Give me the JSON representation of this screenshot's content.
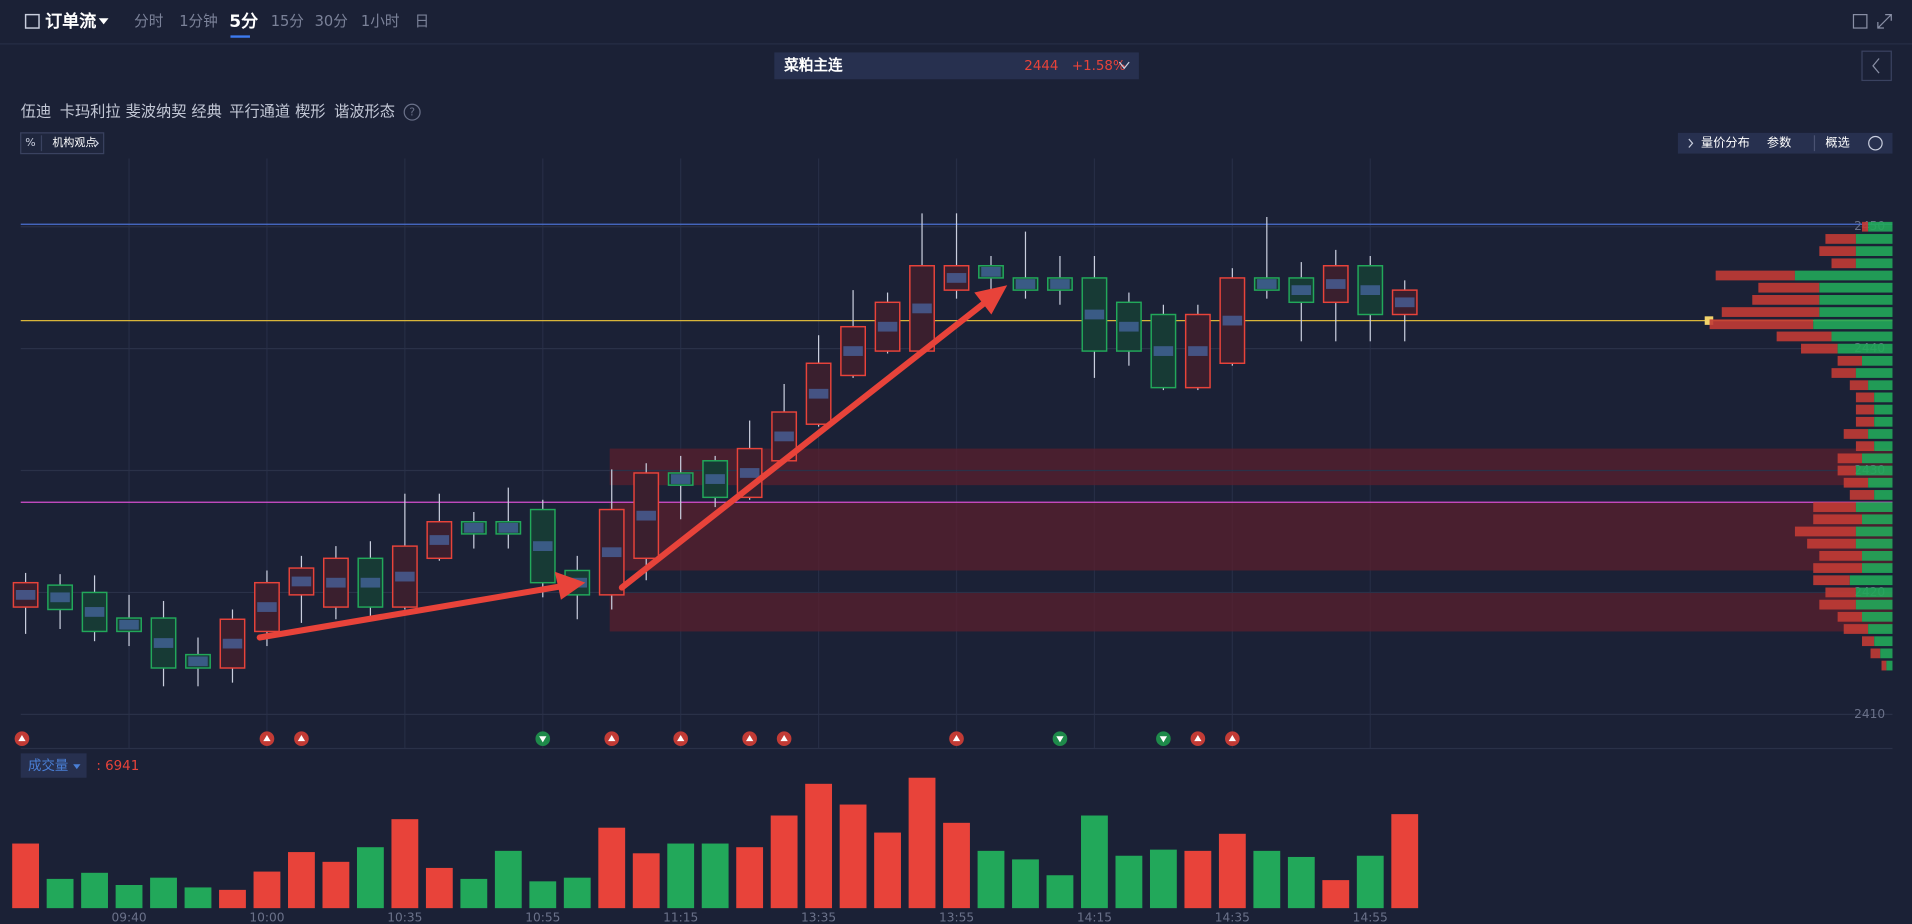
{
  "header": {
    "title": "订单流",
    "timeframes": [
      "分时",
      "1分钟",
      "5分",
      "15分",
      "30分",
      "1小时",
      "日"
    ],
    "active_timeframe": 2
  },
  "instrument": {
    "name": "菜粕主连",
    "price": 2444,
    "change": "+1.58%"
  },
  "tools": [
    "伍迪",
    "卡玛利拉",
    "斐波纳契",
    "经典",
    "平行通道",
    "楔形",
    "谐波形态"
  ],
  "badge": {
    "icon": "%",
    "label": "机构观点"
  },
  "panel_buttons": [
    "量价分布",
    "参数",
    "概选"
  ],
  "chart_data": [
    {
      "type": "candlestick",
      "up_color": "#e8433a",
      "down_color": "#22a85a",
      "open": [
        2418.8,
        2420.6,
        2420,
        2417.9,
        2417.9,
        2414.9,
        2413.8,
        2416.8,
        2419.8,
        2418.8,
        2422.8,
        2418.8,
        2422.8,
        2425.8,
        2425.8,
        2426.8,
        2421.8,
        2419.8,
        2422.8,
        2429.8,
        2430.8,
        2427.8,
        2430.8,
        2433.8,
        2437.8,
        2439.8,
        2439.8,
        2444.8,
        2446.8,
        2445.8,
        2445.8,
        2445.8,
        2443.8,
        2442.8,
        2436.8,
        2438.8,
        2445.8,
        2445.8,
        2443.8,
        2446.8,
        2442.8
      ],
      "high": [
        2421.6,
        2421.5,
        2421.4,
        2419.8,
        2419.3,
        2416.3,
        2418.6,
        2421.8,
        2423,
        2423.8,
        2424.2,
        2428.1,
        2428.1,
        2426.6,
        2428.6,
        2427.6,
        2423,
        2430.1,
        2430.6,
        2431.2,
        2431.2,
        2434.1,
        2437.1,
        2441.1,
        2444.8,
        2444.6,
        2451.1,
        2451.1,
        2447.6,
        2449.6,
        2447.6,
        2447.6,
        2444.6,
        2443.6,
        2443.6,
        2446.6,
        2450.8,
        2447.1,
        2448.1,
        2447.6,
        2445.6
      ],
      "low": [
        2416.6,
        2417,
        2416,
        2415.6,
        2412.3,
        2412.3,
        2412.6,
        2415.6,
        2417.5,
        2417.8,
        2418,
        2418.6,
        2422.6,
        2423.6,
        2423.6,
        2419.6,
        2417.8,
        2418.6,
        2421,
        2426,
        2427,
        2427.6,
        2430.6,
        2433.6,
        2437.6,
        2439.6,
        2439.6,
        2444.1,
        2444.6,
        2444.1,
        2443.6,
        2437.6,
        2438.6,
        2436.6,
        2436.6,
        2438.6,
        2444.1,
        2440.6,
        2440.6,
        2440.6,
        2440.6
      ],
      "close": [
        2420.8,
        2418.6,
        2416.8,
        2416.8,
        2413.8,
        2413.8,
        2417.8,
        2420.8,
        2422,
        2422.8,
        2418.8,
        2423.8,
        2425.8,
        2424.8,
        2424.8,
        2420.8,
        2419.8,
        2426.8,
        2429.8,
        2428.8,
        2427.8,
        2431.8,
        2434.8,
        2438.8,
        2441.8,
        2443.8,
        2446.8,
        2446.8,
        2445.8,
        2444.8,
        2444.8,
        2439.8,
        2439.8,
        2436.8,
        2442.8,
        2445.8,
        2444.8,
        2443.8,
        2446.8,
        2442.8,
        2444.8
      ],
      "ylim": [
        2407.2,
        2455.6
      ],
      "yticks": [
        2410,
        2420,
        2430,
        2440,
        2450
      ],
      "grid": true,
      "levels": [
        {
          "value": 2450.2,
          "color": "#4a6fd0"
        },
        {
          "value": 2442.3,
          "color": "#d9b53a"
        },
        {
          "value": 2427.4,
          "color": "#d64fd0"
        }
      ],
      "zones": [
        {
          "from": 2428.8,
          "to": 2431.8
        },
        {
          "from": 2421.8,
          "to": 2427.4
        },
        {
          "from": 2416.8,
          "to": 2420
        }
      ],
      "volume_profile": {
        "prices": [
          2450,
          2449,
          2448,
          2447,
          2446,
          2445,
          2444,
          2443,
          2442,
          2441,
          2440,
          2439,
          2438,
          2437,
          2436,
          2435,
          2434,
          2433,
          2432,
          2431,
          2430,
          2429,
          2428,
          2427,
          2426,
          2425,
          2424,
          2423,
          2422,
          2421,
          2420,
          2419,
          2418,
          2417,
          2416,
          2415,
          2414
        ],
        "sell": [
          5,
          25,
          30,
          20,
          65,
          50,
          55,
          80,
          85,
          45,
          30,
          20,
          20,
          15,
          15,
          15,
          15,
          20,
          15,
          20,
          15,
          20,
          20,
          35,
          40,
          50,
          40,
          35,
          40,
          30,
          25,
          30,
          20,
          20,
          10,
          8,
          4
        ],
        "buy": [
          20,
          30,
          30,
          30,
          80,
          60,
          60,
          60,
          65,
          50,
          45,
          25,
          30,
          20,
          15,
          15,
          15,
          20,
          15,
          25,
          30,
          20,
          15,
          30,
          25,
          30,
          30,
          25,
          25,
          35,
          30,
          30,
          25,
          20,
          15,
          10,
          5
        ]
      }
    },
    {
      "type": "bar",
      "name": "成交量",
      "readout": ": 6941",
      "categories": [
        null,
        null,
        null,
        "09:40",
        null,
        null,
        null,
        "10:00",
        null,
        null,
        null,
        "10:35",
        null,
        null,
        null,
        "10:55",
        null,
        null,
        null,
        "11:15",
        null,
        null,
        null,
        "13:35",
        null,
        null,
        null,
        "13:55",
        null,
        null,
        null,
        "14:15",
        null,
        null,
        null,
        "14:35",
        null,
        null,
        null,
        "14:55",
        null
      ],
      "values": [
        4770,
        2160,
        2610,
        1710,
        2250,
        1530,
        1350,
        2700,
        4140,
        3420,
        4500,
        6570,
        2970,
        2160,
        4230,
        1980,
        2250,
        5940,
        4050,
        4770,
        4770,
        4500,
        6840,
        9180,
        7650,
        5580,
        9630,
        6300,
        4230,
        3600,
        2430,
        6840,
        3870,
        4320,
        4230,
        5490,
        4230,
        3780,
        2070,
        3870,
        6941
      ]
    }
  ]
}
